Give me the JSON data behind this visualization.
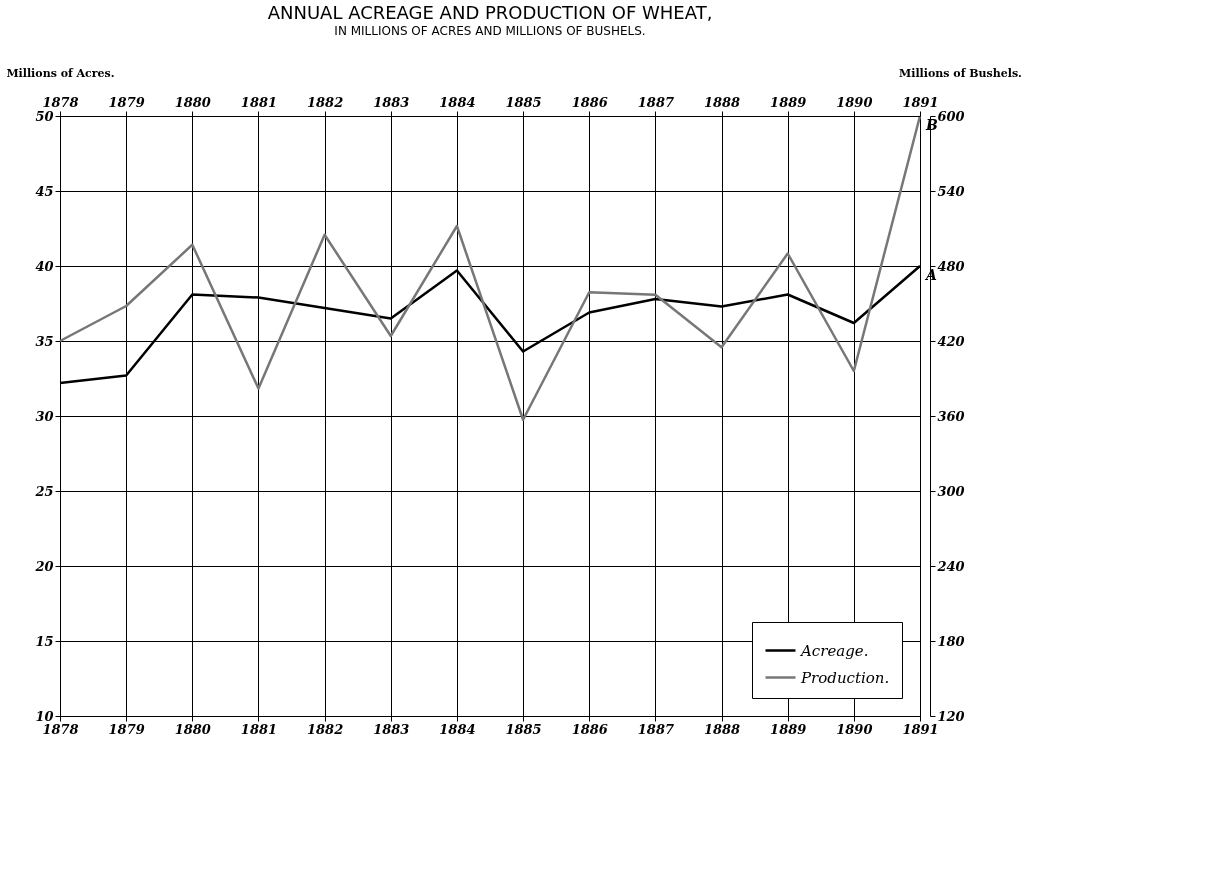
{
  "chart_data": {
    "type": "line",
    "title": "ANNUAL ACREAGE AND PRODUCTION OF WHEAT,",
    "subtitle": "IN MILLIONS OF ACRES AND MILLIONS OF BUSHELS.",
    "ylabel": "Millions of Acres.",
    "y2label": "Millions of Bushels.",
    "x": [
      1878,
      1879,
      1880,
      1881,
      1882,
      1883,
      1884,
      1885,
      1886,
      1887,
      1888,
      1889,
      1890,
      1891
    ],
    "series": [
      {
        "name": "Acreage.",
        "color": "#000000",
        "values": [
          32.2,
          32.7,
          38.1,
          37.9,
          37.2,
          36.5,
          39.7,
          34.3,
          36.9,
          37.8,
          37.3,
          38.1,
          36.2,
          40.0
        ]
      },
      {
        "name": "Production.",
        "color": "#777777",
        "axis": "y2",
        "values": [
          420,
          448,
          497,
          382,
          505,
          424,
          512,
          357,
          459,
          457,
          415,
          490,
          396,
          600
        ]
      }
    ],
    "xlim": [
      1878,
      1891
    ],
    "xticks": [
      1878,
      1879,
      1880,
      1881,
      1882,
      1883,
      1884,
      1885,
      1886,
      1887,
      1888,
      1889,
      1890,
      1891
    ],
    "x2lim": [
      1878,
      1891
    ],
    "x2ticks": [
      1878,
      1879,
      1880,
      1881,
      1882,
      1883,
      1884,
      1885,
      1886,
      1887,
      1888,
      1889,
      1890,
      1891
    ],
    "ylim": [
      10,
      50
    ],
    "yticks": [
      10,
      15,
      20,
      25,
      30,
      35,
      40,
      45,
      50
    ],
    "y2lim": [
      120,
      600
    ],
    "y2ticks": [
      120,
      180,
      240,
      300,
      360,
      420,
      480,
      540,
      600
    ],
    "annotations": [
      "A",
      "B"
    ],
    "grid": true,
    "legend": "bottom right",
    "marker": "none",
    "line_style": "solid"
  }
}
